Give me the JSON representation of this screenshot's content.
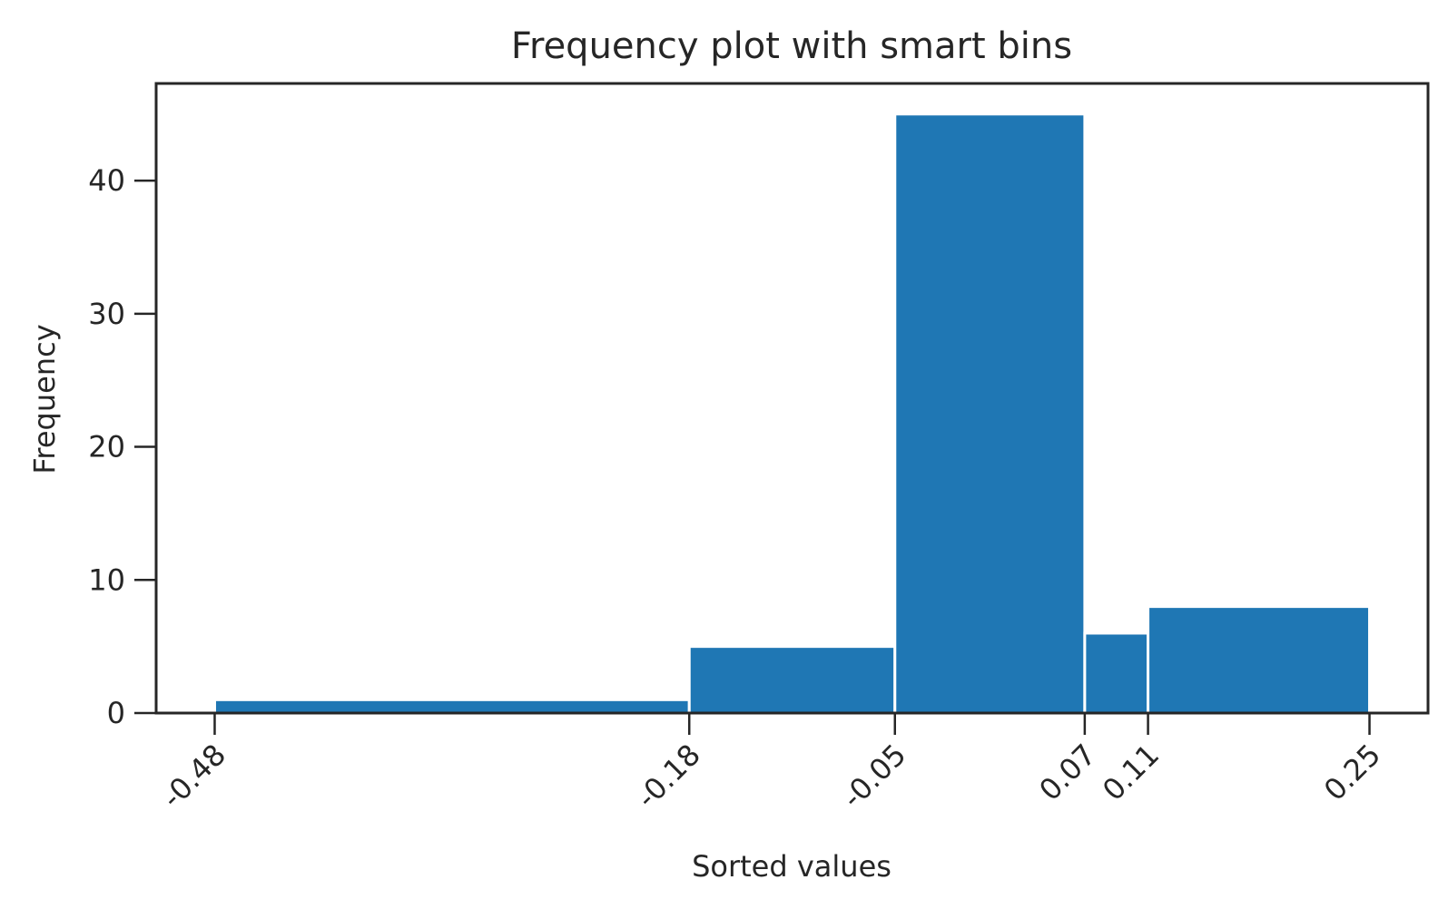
{
  "chart_data": {
    "type": "bar",
    "title": "Frequency plot with smart bins",
    "xlabel": "Sorted values",
    "ylabel": "Frequency",
    "bin_edges": [
      -0.48,
      -0.18,
      -0.05,
      0.07,
      0.11,
      0.25
    ],
    "x_tick_labels": [
      "-0.48",
      "-0.18",
      "-0.05",
      "0.07",
      "0.11",
      "0.25"
    ],
    "values": [
      1,
      5,
      45,
      6,
      8
    ],
    "y_ticks": [
      0,
      10,
      20,
      30,
      40
    ],
    "y_tick_labels": [
      "0",
      "10",
      "20",
      "30",
      "40"
    ],
    "xlim": [
      -0.517,
      0.287
    ],
    "ylim": [
      0,
      47.3
    ],
    "grid": false,
    "colors": {
      "bar": "#1f77b4",
      "axis": "#262626",
      "bar_edge": "#ffffff"
    }
  }
}
